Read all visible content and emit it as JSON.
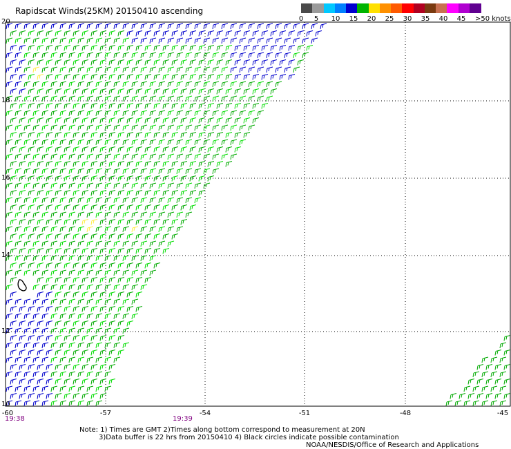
{
  "title": "Rapidscat Winds(25KM) 20150410 ascending",
  "colorbar": {
    "labels": [
      "0",
      "5",
      "10",
      "15",
      "20",
      "25",
      "30",
      "35",
      "40",
      "45"
    ],
    "units_label": ">50 knots",
    "colors": [
      "#4a4a4a",
      "#9a9a9a",
      "#00c8ff",
      "#0080ff",
      "#0000d0",
      "#00b400",
      "#ffe000",
      "#ff9000",
      "#ff5a00",
      "#ff0000",
      "#b00020",
      "#7a3a10",
      "#c87050",
      "#ff00ff",
      "#b000d0",
      "#600090"
    ]
  },
  "map": {
    "lat_labels": [
      "20",
      "18",
      "16",
      "14",
      "12",
      "10"
    ],
    "lon_labels": [
      "-60",
      "-57",
      "-54",
      "-51",
      "-48",
      "-45"
    ],
    "time_labels": [
      "19:38",
      "19:39"
    ]
  },
  "wind_colors": {
    "low": "#0000cc",
    "mid": "#00aa00",
    "high": "#00dd00",
    "strong": "#ffee44"
  },
  "notes": {
    "line1": "Note: 1) Times are GMT 2)Times along bottom correspond to measurement at 20N",
    "line2": "3)Data buffer is 22 hrs from 20150410 4) Black circles indicate possible contamination",
    "line3": "NOAA/NESDIS/Office of Research and Applications"
  }
}
